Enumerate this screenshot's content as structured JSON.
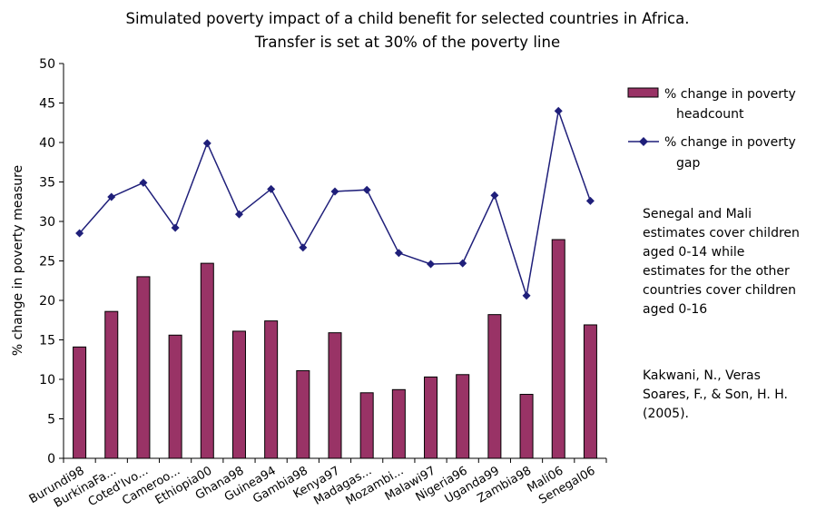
{
  "chart_data": {
    "type": "bar",
    "title": "Simulated poverty impact of a child benefit for selected countries in Africa.",
    "subtitle": "Transfer is set at 30% of the poverty line",
    "xlabel": "",
    "ylabel": "% change in poverty measure",
    "ylim": [
      0,
      50
    ],
    "y_ticks": [
      0,
      5,
      10,
      15,
      20,
      25,
      30,
      35,
      40,
      45,
      50
    ],
    "grid": false,
    "legend_position": "right",
    "categories": [
      "Burundi98",
      "BurkinaFa...",
      "Coted'Ivo...",
      "Cameroo...",
      "Ethiopia00",
      "Ghana98",
      "Guinea94",
      "Gambia98",
      "Kenya97",
      "Madagas...",
      "Mozambi...",
      "Malawi97",
      "Nigeria96",
      "Uganda99",
      "Zambia98",
      "Mali06",
      "Senegal06"
    ],
    "series": [
      {
        "name": "% change in poverty headcount",
        "type": "bar",
        "color": "#993366",
        "values": [
          14.1,
          18.6,
          23.0,
          15.6,
          24.7,
          16.1,
          17.4,
          11.1,
          15.9,
          8.3,
          8.7,
          10.3,
          10.6,
          18.2,
          8.1,
          27.7,
          16.9
        ]
      },
      {
        "name": "% change in poverty gap",
        "type": "line",
        "marker": "diamond",
        "color": "#1f1f7a",
        "values": [
          28.5,
          33.1,
          34.9,
          29.2,
          39.9,
          30.9,
          34.1,
          26.7,
          33.8,
          34.0,
          26.0,
          24.6,
          24.7,
          33.3,
          20.6,
          44.0,
          32.6
        ]
      }
    ],
    "annotations": [
      "Senegal and Mali estimates cover children aged 0-14 while estimates for the other countries cover children aged 0-16",
      "Kakwani, N., Veras Soares, F., & Son, H. H. (2005)."
    ]
  }
}
